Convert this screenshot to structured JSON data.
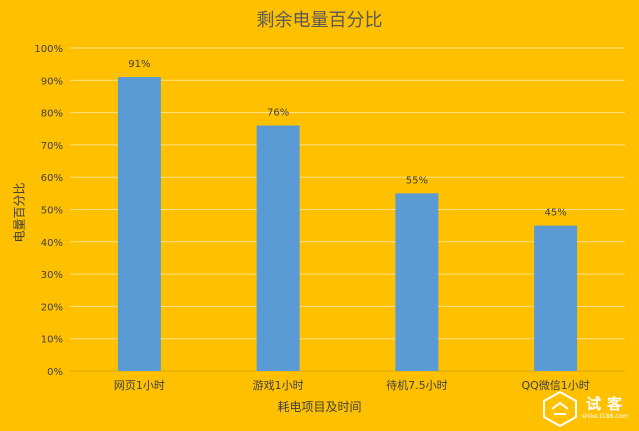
{
  "chart_data": {
    "type": "bar",
    "title": "剩余电量百分比",
    "xlabel": "耗电项目及时间",
    "ylabel": "电量百分比",
    "categories": [
      "网页1小时",
      "游戏1小时",
      "待机7.5小时",
      "QQ微信1小时"
    ],
    "values": [
      91,
      76,
      55,
      45
    ],
    "data_labels": [
      "91%",
      "76%",
      "55%",
      "45%"
    ],
    "y_ticks": [
      "0%",
      "10%",
      "20%",
      "30%",
      "40%",
      "50%",
      "60%",
      "70%",
      "80%",
      "90%",
      "100%"
    ],
    "ylim": [
      0,
      100
    ],
    "grid": true,
    "colors": {
      "background": "#FFC000",
      "bar": "#5B9BD5",
      "grid": "#FFE28A"
    }
  },
  "watermark": {
    "text": "试客",
    "subtext": "shike.t188.com"
  }
}
